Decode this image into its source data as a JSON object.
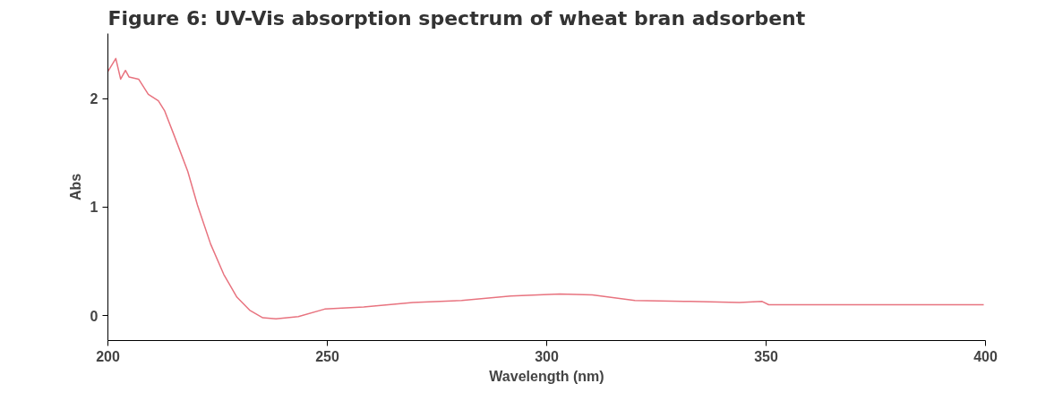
{
  "chart_data": {
    "type": "line",
    "title": "Figure 6: UV-Vis absorption spectrum of wheat bran adsorbent",
    "xlabel": "Wavelength (nm)",
    "ylabel": "Abs",
    "x": [
      200,
      201.8,
      202.9,
      204.0,
      204.8,
      207.0,
      209.2,
      211.5,
      212.9,
      215.2,
      218.2,
      220.4,
      223.4,
      226.4,
      229.4,
      232.3,
      235.3,
      238.3,
      243.4,
      249.4,
      258.3,
      269.5,
      280.6,
      291.8,
      303,
      310.4,
      320.1,
      332.7,
      343.9,
      349.1,
      350.6,
      399.6
    ],
    "series": [
      {
        "color": "#e8737f",
        "values": [
          2.25,
          2.37,
          2.18,
          2.26,
          2.2,
          2.18,
          2.04,
          1.98,
          1.89,
          1.65,
          1.33,
          1.02,
          0.66,
          0.38,
          0.17,
          0.05,
          -0.02,
          -0.03,
          -0.01,
          0.06,
          0.08,
          0.12,
          0.14,
          0.18,
          0.2,
          0.19,
          0.14,
          0.13,
          0.12,
          0.13,
          0.1,
          0.1
        ]
      }
    ],
    "xlim": [
      200,
      400
    ],
    "ylim": [
      -0.23,
      2.6
    ],
    "xticks": [
      200,
      250,
      300,
      350,
      400
    ],
    "yticks": [
      0,
      1,
      2
    ],
    "grid": false,
    "marker": "none",
    "line_style": "solid"
  }
}
